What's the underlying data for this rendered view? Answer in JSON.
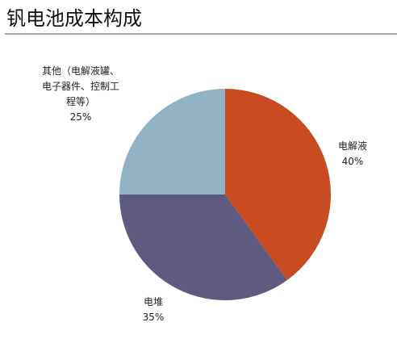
{
  "chart_data": {
    "type": "pie",
    "title": "钒电池成本构成",
    "categories": [
      "电解液",
      "电堆",
      "其他（电解液罐、电子器件、控制工程等）"
    ],
    "values": [
      40,
      35,
      25
    ],
    "value_labels": [
      "40%",
      "35%",
      "25%"
    ],
    "colors": [
      "#c84b22",
      "#5f5a80",
      "#93b3c5"
    ]
  }
}
